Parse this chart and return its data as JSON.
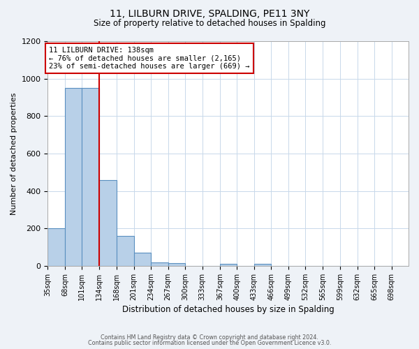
{
  "title": "11, LILBURN DRIVE, SPALDING, PE11 3NY",
  "subtitle": "Size of property relative to detached houses in Spalding",
  "xlabel": "Distribution of detached houses by size in Spalding",
  "ylabel": "Number of detached properties",
  "bar_labels": [
    "35sqm",
    "68sqm",
    "101sqm",
    "134sqm",
    "168sqm",
    "201sqm",
    "234sqm",
    "267sqm",
    "300sqm",
    "333sqm",
    "367sqm",
    "400sqm",
    "433sqm",
    "466sqm",
    "499sqm",
    "532sqm",
    "565sqm",
    "599sqm",
    "632sqm",
    "665sqm",
    "698sqm"
  ],
  "bar_values": [
    200,
    950,
    950,
    460,
    160,
    70,
    20,
    15,
    0,
    0,
    10,
    0,
    10,
    0,
    0,
    0,
    0,
    0,
    0,
    0,
    0
  ],
  "bar_color": "#b8d0e8",
  "bar_edge_color": "#5a8fc0",
  "ylim": [
    0,
    1200
  ],
  "yticks": [
    0,
    200,
    400,
    600,
    800,
    1000,
    1200
  ],
  "property_line_label": "11 LILBURN DRIVE: 138sqm",
  "annotation_line1": "← 76% of detached houses are smaller (2,165)",
  "annotation_line2": "23% of semi-detached houses are larger (669) →",
  "annotation_box_color": "#ffffff",
  "annotation_box_edge_color": "#cc0000",
  "red_line_color": "#cc0000",
  "footer_line1": "Contains HM Land Registry data © Crown copyright and database right 2024.",
  "footer_line2": "Contains public sector information licensed under the Open Government Licence v3.0.",
  "background_color": "#eef2f7",
  "plot_background_color": "#ffffff",
  "grid_color": "#c8d8ea",
  "bin_edges": [
    35,
    68,
    101,
    134,
    168,
    201,
    234,
    267,
    300,
    333,
    367,
    400,
    433,
    466,
    499,
    532,
    565,
    599,
    632,
    665,
    698,
    731
  ],
  "red_line_bin_index": 3
}
